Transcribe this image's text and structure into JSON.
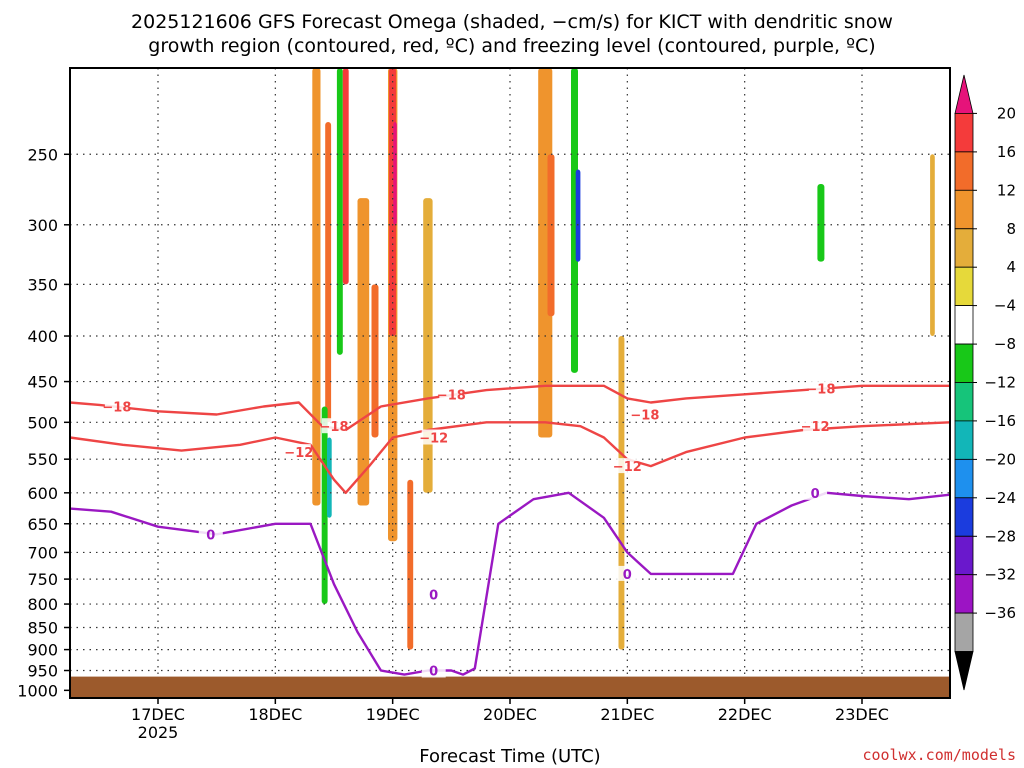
{
  "title_line1": "2025121606 GFS Forecast Omega (shaded, −cm/s) for KICT with dendritic snow",
  "title_line2": "growth region (contoured, red, ºC) and freezing level (contoured, purple, ºC)",
  "credit": "coolwx.com/models",
  "chart_data": {
    "type": "heatmap",
    "xlabel": "Forecast Time (UTC)",
    "ylabel": "",
    "x_range_days": [
      16.25,
      23.75
    ],
    "x_ticks": [
      {
        "day": 17,
        "label": "17DEC",
        "sublabel": "2025"
      },
      {
        "day": 18,
        "label": "18DEC"
      },
      {
        "day": 19,
        "label": "19DEC"
      },
      {
        "day": 20,
        "label": "20DEC"
      },
      {
        "day": 21,
        "label": "21DEC"
      },
      {
        "day": 22,
        "label": "22DEC"
      },
      {
        "day": 23,
        "label": "23DEC"
      }
    ],
    "y_ticks": [
      250,
      300,
      350,
      400,
      450,
      500,
      550,
      600,
      650,
      700,
      750,
      800,
      850,
      900,
      950,
      1000
    ],
    "y_range_hpa": [
      200,
      1020
    ],
    "ground_hpa": 965,
    "colorbar": {
      "labels": [
        "20",
        "16",
        "12",
        "8",
        "4",
        "−4",
        "−8",
        "−12",
        "−16",
        "−20",
        "−24",
        "−28",
        "−32",
        "−36"
      ],
      "colors": [
        "#e6137a",
        "#f43b3b",
        "#f26c2a",
        "#ef942d",
        "#e4ad3a",
        "#e6d93a",
        "#ffffff",
        "#18c818",
        "#16c47a",
        "#12b6b8",
        "#1e90ee",
        "#1b3cde",
        "#6a18cc",
        "#9c14c4",
        "#a5a5a5",
        "#000000"
      ]
    },
    "omega_cells": [
      {
        "t": 18.35,
        "w": 0.07,
        "p1": 200,
        "p2": 620,
        "v": 8
      },
      {
        "t": 18.25,
        "w": 0.04,
        "p1": 250,
        "p2": 700,
        "v": -8
      },
      {
        "t": 18.45,
        "w": 0.05,
        "p1": 230,
        "p2": 500,
        "v": 12
      },
      {
        "t": 18.42,
        "w": 0.05,
        "p1": 480,
        "p2": 800,
        "v": -12
      },
      {
        "t": 18.46,
        "w": 0.04,
        "p1": 520,
        "p2": 640,
        "v": -20
      },
      {
        "t": 18.55,
        "w": 0.05,
        "p1": 200,
        "p2": 420,
        "v": -12
      },
      {
        "t": 18.6,
        "w": 0.05,
        "p1": 200,
        "p2": 350,
        "v": 16
      },
      {
        "t": 18.75,
        "w": 0.1,
        "p1": 280,
        "p2": 620,
        "v": 8
      },
      {
        "t": 18.85,
        "w": 0.06,
        "p1": 350,
        "p2": 520,
        "v": 12
      },
      {
        "t": 19.0,
        "w": 0.08,
        "p1": 200,
        "p2": 680,
        "v": 8
      },
      {
        "t": 19.0,
        "w": 0.06,
        "p1": 200,
        "p2": 400,
        "v": 16
      },
      {
        "t": 19.02,
        "w": 0.03,
        "p1": 230,
        "p2": 300,
        "v": 20
      },
      {
        "t": 19.15,
        "w": 0.05,
        "p1": 580,
        "p2": 900,
        "v": 12
      },
      {
        "t": 19.3,
        "w": 0.08,
        "p1": 280,
        "p2": 600,
        "v": 4
      },
      {
        "t": 20.3,
        "w": 0.12,
        "p1": 200,
        "p2": 520,
        "v": 8
      },
      {
        "t": 20.35,
        "w": 0.06,
        "p1": 250,
        "p2": 380,
        "v": 12
      },
      {
        "t": 20.55,
        "w": 0.06,
        "p1": 200,
        "p2": 440,
        "v": -12
      },
      {
        "t": 20.58,
        "w": 0.04,
        "p1": 260,
        "p2": 330,
        "v": -28
      },
      {
        "t": 20.7,
        "w": 0.05,
        "p1": 220,
        "p2": 500,
        "v": -8
      },
      {
        "t": 20.95,
        "w": 0.05,
        "p1": 400,
        "p2": 900,
        "v": 4
      },
      {
        "t": 21.25,
        "w": 0.04,
        "p1": 250,
        "p2": 320,
        "v": -8
      },
      {
        "t": 22.65,
        "w": 0.06,
        "p1": 270,
        "p2": 330,
        "v": -12
      },
      {
        "t": 22.7,
        "w": 0.04,
        "p1": 780,
        "p2": 940,
        "v": -8
      },
      {
        "t": 23.35,
        "w": 0.05,
        "p1": 240,
        "p2": 400,
        "v": -8
      },
      {
        "t": 23.6,
        "w": 0.04,
        "p1": 250,
        "p2": 400,
        "v": 4
      }
    ],
    "contours": [
      {
        "label": "−18",
        "color": "#ee4545",
        "points": [
          [
            16.25,
            475
          ],
          [
            16.5,
            478
          ],
          [
            17.0,
            486
          ],
          [
            17.5,
            490
          ],
          [
            17.9,
            480
          ],
          [
            18.2,
            475
          ],
          [
            18.4,
            505
          ],
          [
            18.6,
            510
          ],
          [
            18.9,
            480
          ],
          [
            19.3,
            470
          ],
          [
            19.8,
            460
          ],
          [
            20.3,
            455
          ],
          [
            20.8,
            455
          ],
          [
            21.0,
            470
          ],
          [
            21.2,
            475
          ],
          [
            21.5,
            470
          ],
          [
            22.0,
            465
          ],
          [
            22.5,
            460
          ],
          [
            23.0,
            455
          ],
          [
            23.5,
            455
          ],
          [
            23.75,
            455
          ]
        ],
        "labels_at": [
          [
            16.65,
            480
          ],
          [
            18.5,
            505
          ],
          [
            19.5,
            465
          ],
          [
            21.15,
            490
          ],
          [
            22.65,
            458
          ]
        ]
      },
      {
        "label": "−12",
        "color": "#ee4545",
        "points": [
          [
            16.25,
            520
          ],
          [
            16.7,
            530
          ],
          [
            17.2,
            538
          ],
          [
            17.7,
            530
          ],
          [
            18.0,
            520
          ],
          [
            18.3,
            530
          ],
          [
            18.5,
            580
          ],
          [
            18.6,
            600
          ],
          [
            18.8,
            560
          ],
          [
            19.0,
            520
          ],
          [
            19.3,
            510
          ],
          [
            19.8,
            500
          ],
          [
            20.3,
            500
          ],
          [
            20.6,
            505
          ],
          [
            20.8,
            520
          ],
          [
            21.0,
            550
          ],
          [
            21.2,
            560
          ],
          [
            21.5,
            540
          ],
          [
            22.0,
            520
          ],
          [
            22.5,
            510
          ],
          [
            23.0,
            505
          ],
          [
            23.75,
            500
          ]
        ],
        "labels_at": [
          [
            18.2,
            540
          ],
          [
            19.35,
            520
          ],
          [
            21.0,
            560
          ],
          [
            22.6,
            505
          ]
        ]
      },
      {
        "label": "0",
        "color": "#9a18c2",
        "points": [
          [
            16.25,
            625
          ],
          [
            16.6,
            630
          ],
          [
            17.0,
            655
          ],
          [
            17.5,
            668
          ],
          [
            18.0,
            650
          ],
          [
            18.3,
            650
          ],
          [
            18.5,
            760
          ],
          [
            18.7,
            860
          ],
          [
            18.9,
            950
          ],
          [
            19.1,
            960
          ],
          [
            19.3,
            950
          ],
          [
            19.5,
            950
          ],
          [
            19.6,
            960
          ],
          [
            19.7,
            945
          ],
          [
            19.9,
            650
          ],
          [
            20.2,
            610
          ],
          [
            20.5,
            600
          ],
          [
            20.8,
            640
          ],
          [
            21.0,
            700
          ],
          [
            21.2,
            740
          ],
          [
            21.6,
            740
          ],
          [
            21.9,
            740
          ],
          [
            22.1,
            650
          ],
          [
            22.4,
            620
          ],
          [
            22.7,
            600
          ],
          [
            23.0,
            605
          ],
          [
            23.4,
            610
          ],
          [
            23.75,
            603
          ]
        ],
        "labels_at": [
          [
            17.45,
            668
          ],
          [
            19.35,
            780
          ],
          [
            19.35,
            950
          ],
          [
            21.0,
            740
          ],
          [
            22.6,
            600
          ]
        ]
      }
    ]
  }
}
